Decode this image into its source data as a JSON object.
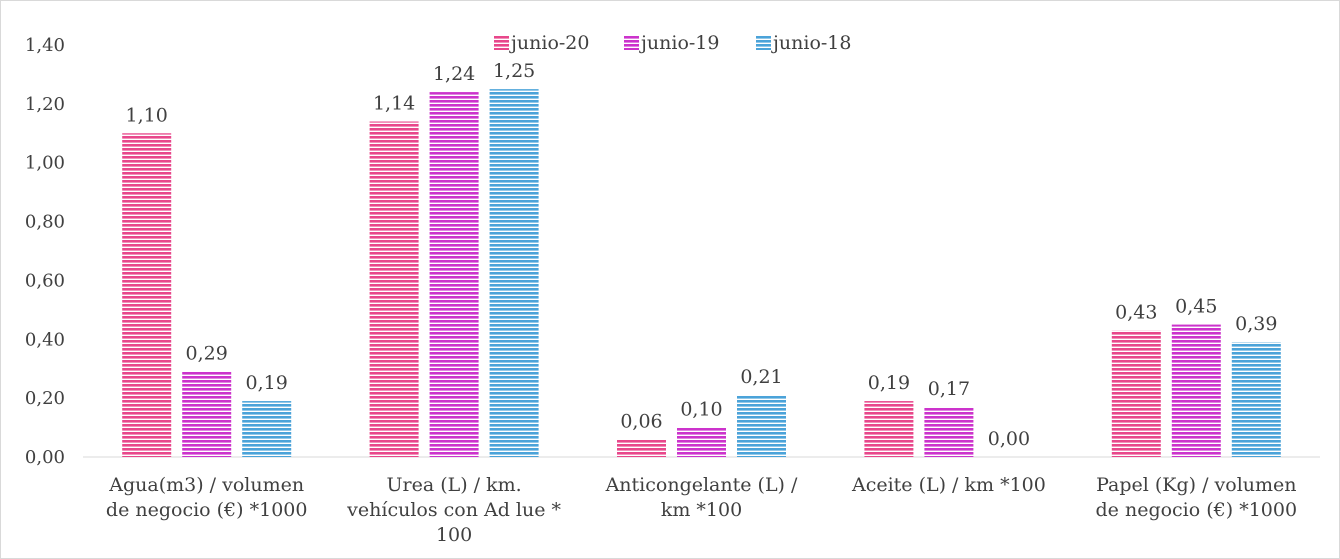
{
  "chart_data": {
    "type": "bar",
    "title": "",
    "xlabel": "",
    "ylabel": "",
    "ylim": [
      0,
      1.4
    ],
    "yticks": [
      "0,00",
      "0,20",
      "0,40",
      "0,60",
      "0,80",
      "1,00",
      "1,20",
      "1,40"
    ],
    "grid": false,
    "legend_position": "top",
    "categories": [
      [
        "Agua(m3)  / volumen",
        "de negocio (€) *1000"
      ],
      [
        "Urea (L)  /  km.",
        "vehículos con Ad lue *",
        "100"
      ],
      [
        "Anticongelante (L)  /",
        "km  *100"
      ],
      [
        "Aceite (L)  / km  *100"
      ],
      [
        "Papel (Kg)  / volumen",
        "de negocio (€) *1000"
      ]
    ],
    "series": [
      {
        "name": "junio-20",
        "color": "#e8478b",
        "values": [
          1.1,
          1.14,
          0.06,
          0.19,
          0.43
        ],
        "labels": [
          "1,10",
          "1,14",
          "0,06",
          "0,19",
          "0,43"
        ]
      },
      {
        "name": "junio-19",
        "color": "#cc33cc",
        "values": [
          0.29,
          1.24,
          0.1,
          0.17,
          0.45
        ],
        "labels": [
          "0,29",
          "1,24",
          "0,10",
          "0,17",
          "0,45"
        ]
      },
      {
        "name": "junio-18",
        "color": "#4ba3d9",
        "values": [
          0.19,
          1.25,
          0.21,
          0.0,
          0.39
        ],
        "labels": [
          "0,19",
          "1,25",
          "0,21",
          "0,00",
          "0,39"
        ]
      }
    ]
  }
}
